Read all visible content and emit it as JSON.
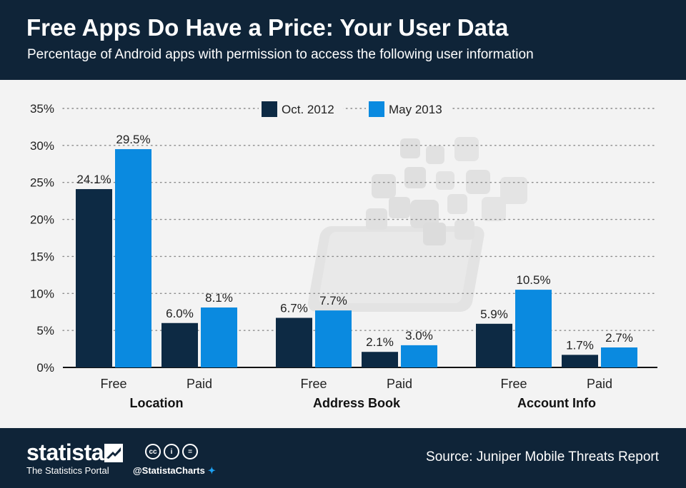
{
  "header": {
    "title": "Free Apps Do Have a Price: Your User Data",
    "subtitle": "Percentage of Android apps with permission to access the following user information"
  },
  "colors": {
    "oct2012": "#0d2a44",
    "may2013": "#0a8ae0",
    "header_bg": "#0f2438"
  },
  "chart_data": {
    "type": "bar",
    "ylim": [
      0,
      35
    ],
    "yticks": [
      "0%",
      "5%",
      "10%",
      "15%",
      "20%",
      "25%",
      "30%",
      "35%"
    ],
    "legend_position": "top-center",
    "grid": true,
    "groups": [
      "Location",
      "Address Book",
      "Account Info"
    ],
    "categories": [
      "Free",
      "Paid",
      "Free",
      "Paid",
      "Free",
      "Paid"
    ],
    "series": [
      {
        "name": "Oct. 2012",
        "values": [
          24.1,
          6.0,
          6.7,
          2.1,
          5.9,
          1.7
        ],
        "labels": [
          "24.1%",
          "6.0%",
          "6.7%",
          "2.1%",
          "5.9%",
          "1.7%"
        ]
      },
      {
        "name": "May 2013",
        "values": [
          29.5,
          8.1,
          7.7,
          3.0,
          10.5,
          2.7
        ],
        "labels": [
          "29.5%",
          "8.1%",
          "7.7%",
          "3.0%",
          "10.5%",
          "2.7%"
        ]
      }
    ]
  },
  "footer": {
    "brand": "statista",
    "tagline": "The Statistics Portal",
    "handle": "@StatistaCharts",
    "cc_icons": [
      "cc",
      "i",
      "="
    ],
    "source": "Source: Juniper Mobile Threats Report"
  }
}
